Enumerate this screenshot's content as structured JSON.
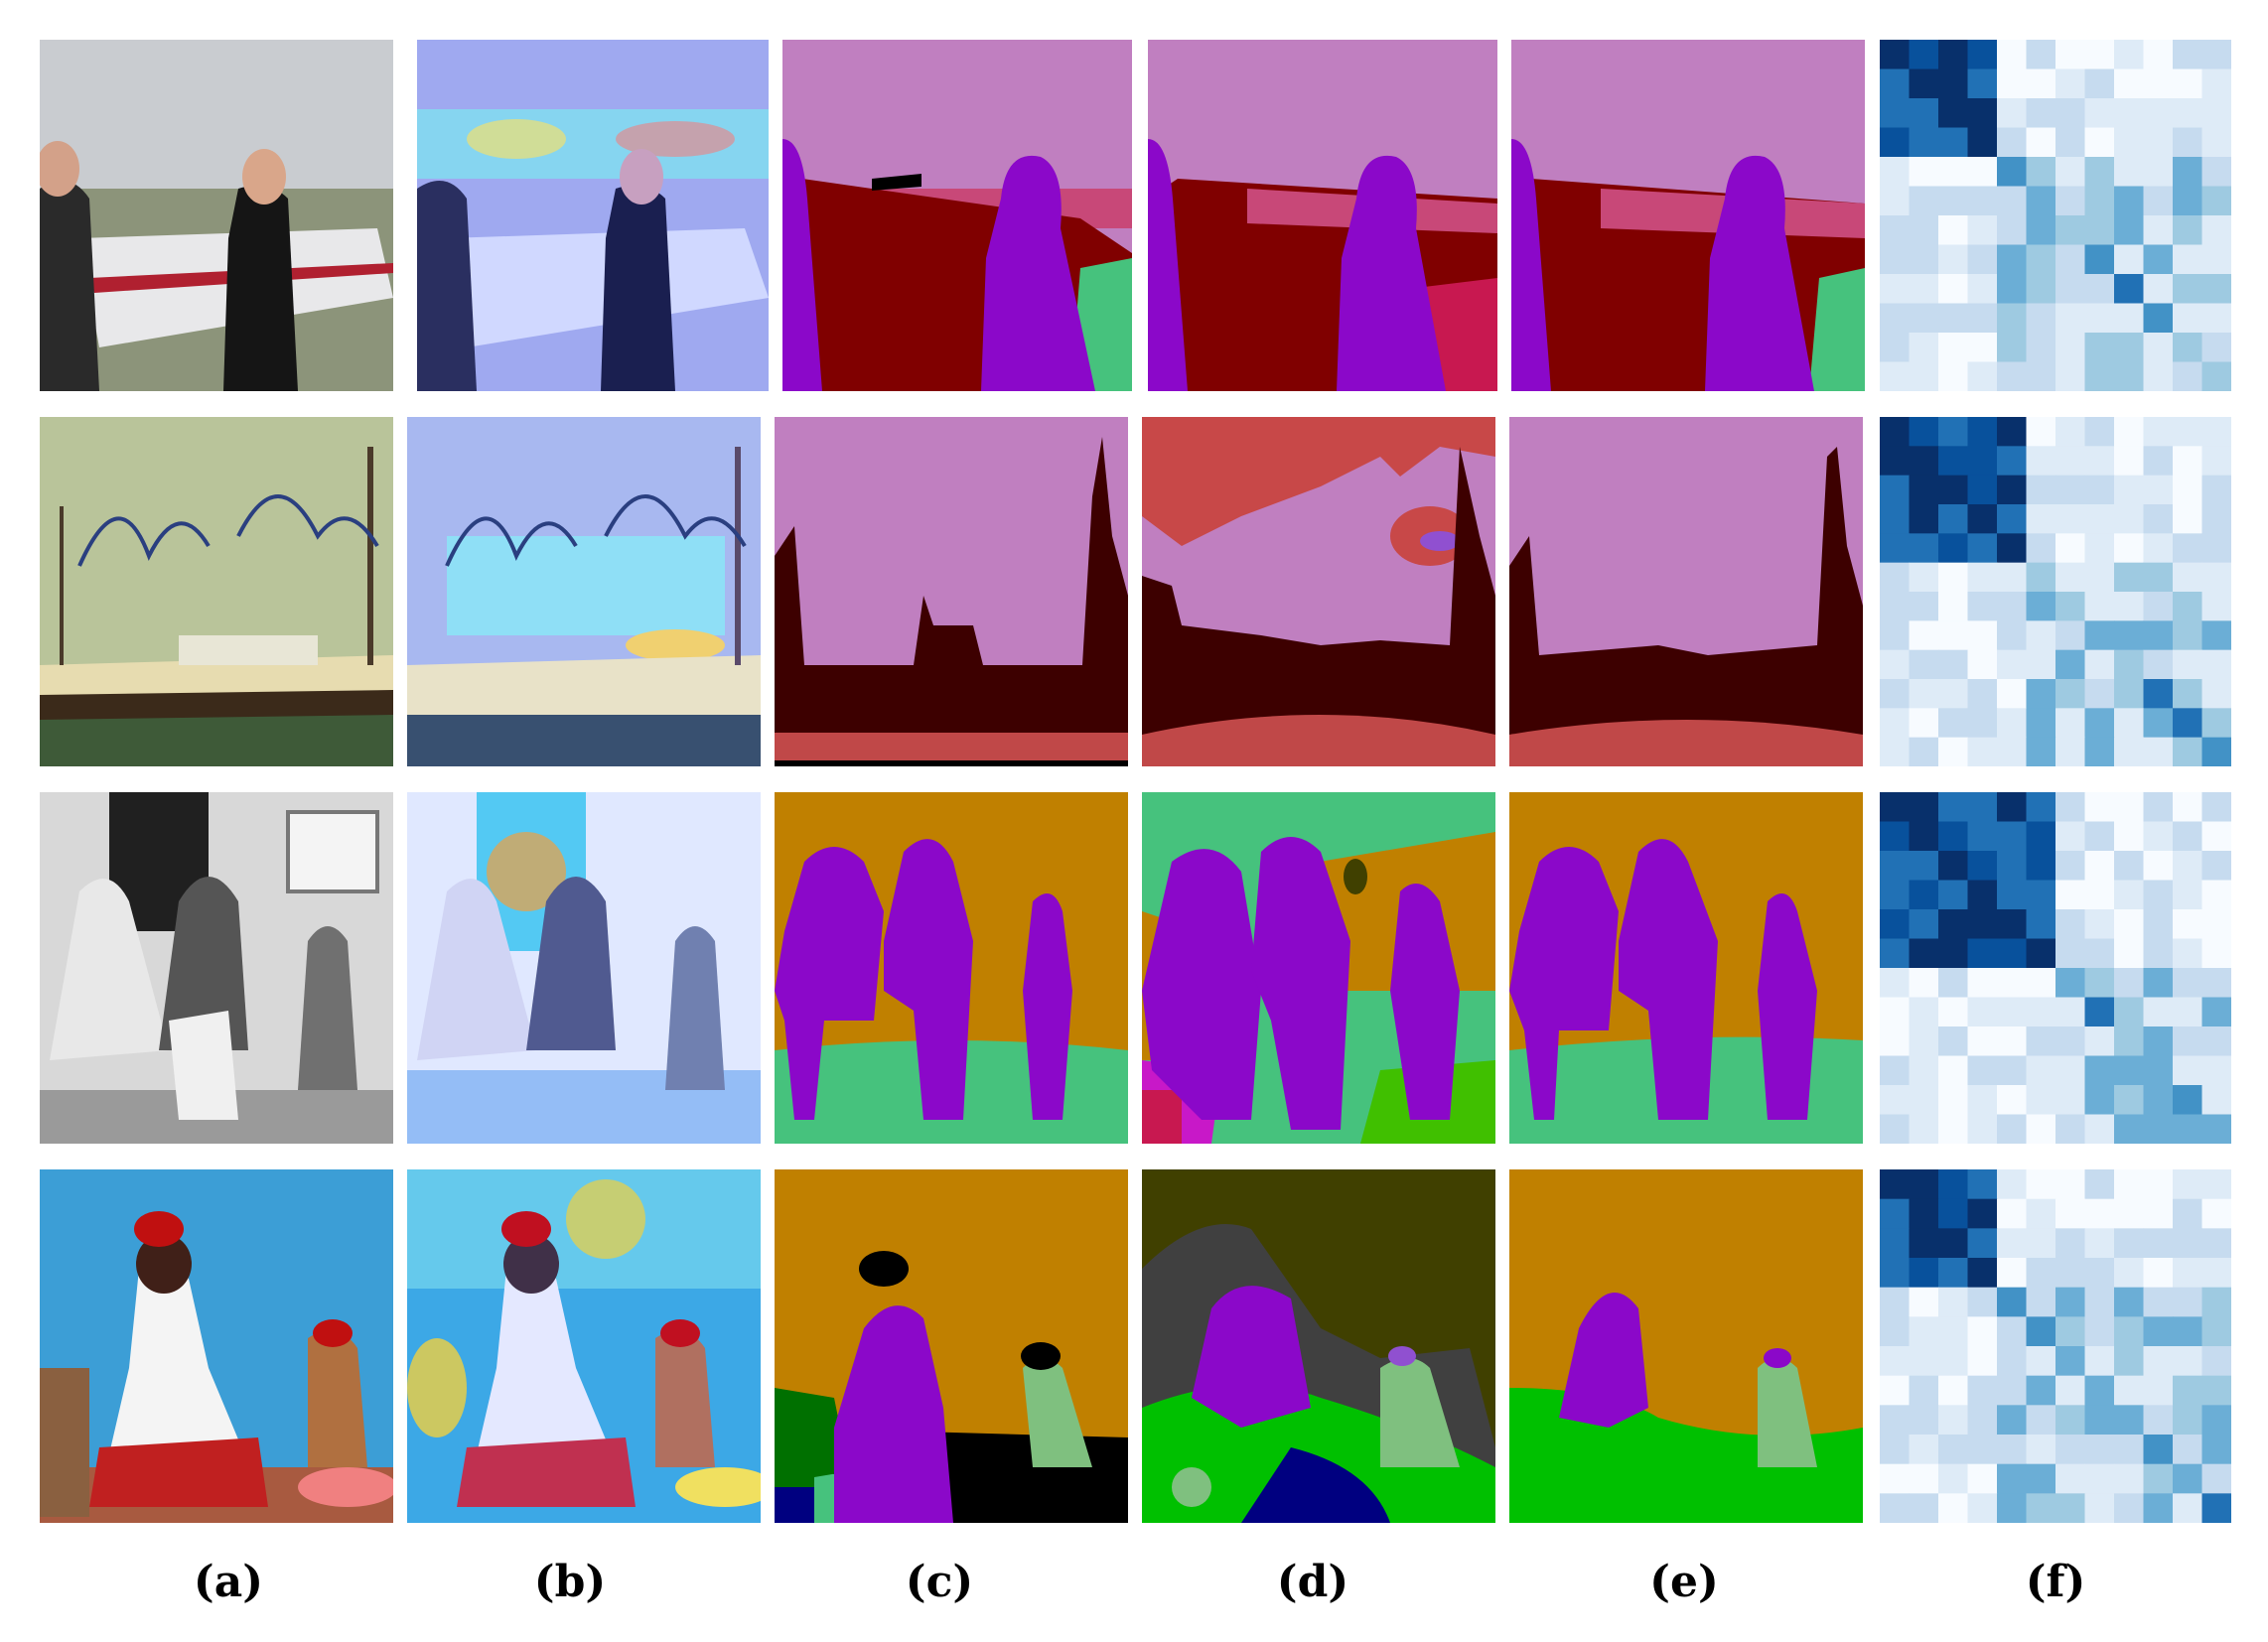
{
  "columns": [
    {
      "label": "(a)",
      "kind": "input-photo"
    },
    {
      "label": "(b)",
      "kind": "attention-overlay"
    },
    {
      "label": "(c)",
      "kind": "ground-truth-segmentation"
    },
    {
      "label": "(d)",
      "kind": "baseline-segmentation"
    },
    {
      "label": "(e)",
      "kind": "ours-segmentation"
    },
    {
      "label": "(f)",
      "kind": "affinity-matrix"
    }
  ],
  "colors": {
    "sky_pink": "#c07fc0",
    "airplane_red": "#800000",
    "person_purple": "#8b08c9",
    "grass_green": "#46c27d",
    "boat_dark": "#3d0000",
    "sea_red": "#c04848",
    "ground_orange": "#c08000",
    "dog_lightgreen": "#7fc07f",
    "wall_olive": "#404000",
    "rock_gray": "#404040",
    "heat_blue_dark": "#08306b",
    "heat_blue_light": "#deebf7"
  },
  "rows": 4
}
